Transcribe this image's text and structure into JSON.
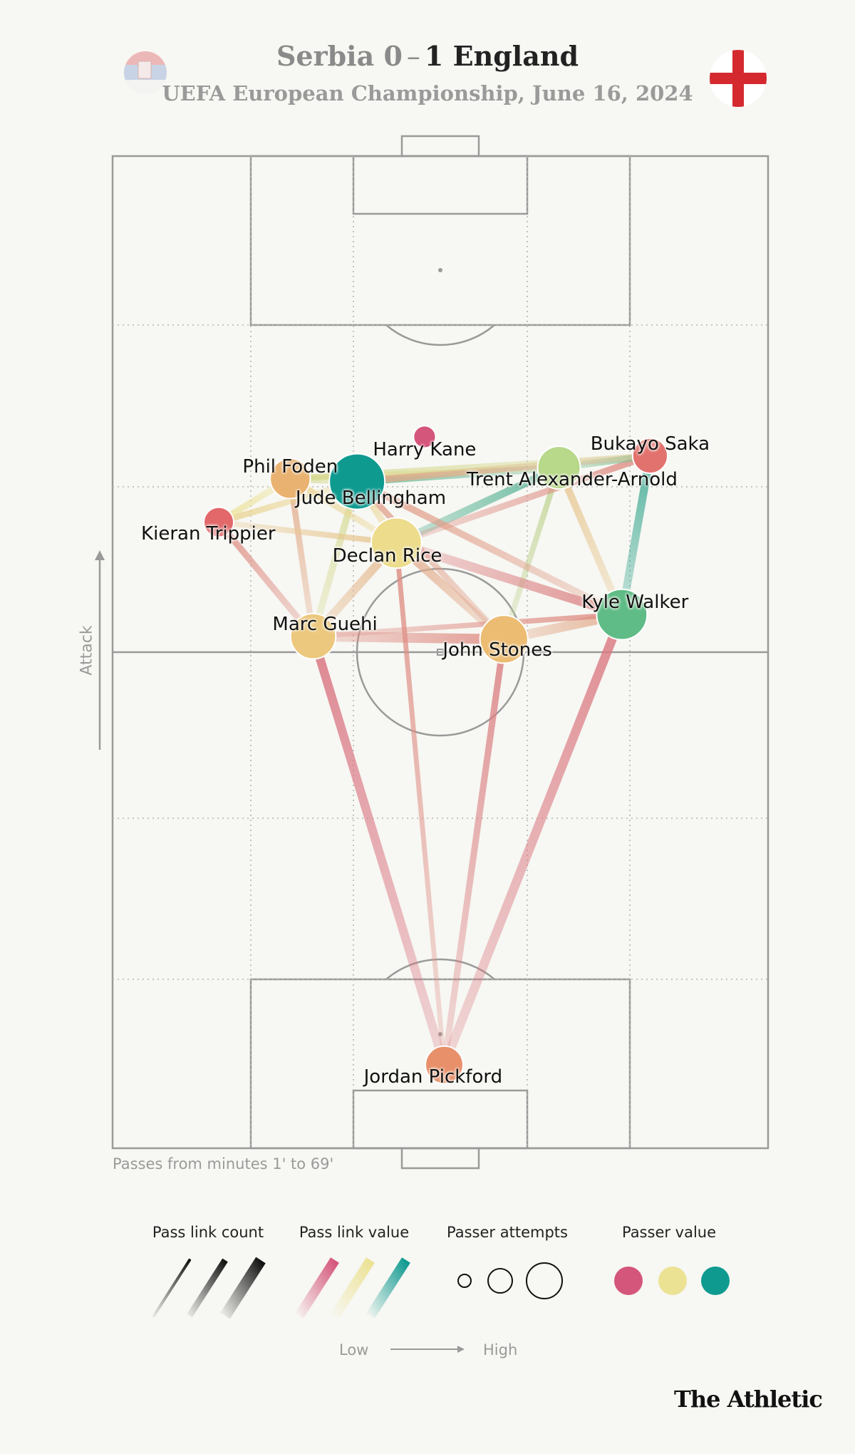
{
  "header": {
    "home_team": "Serbia",
    "home_score": "0",
    "score_separator": "–",
    "away_score": "1",
    "away_team": "England",
    "subtitle": "UEFA European Championship, June 16, 2024"
  },
  "footnote": "Passes from minutes 1' to 69'",
  "axis_label": "Attack",
  "brand": "The Athletic",
  "legend": {
    "pass_link_count": "Pass link count",
    "pass_link_value": "Pass link value",
    "passer_attempts": "Passer attempts",
    "passer_value": "Passer value",
    "low": "Low",
    "high": "High"
  },
  "colors": {
    "low_value": "#d4567a",
    "mid_value": "#ece294",
    "high_value": "#0f9a90",
    "pitch_line": "#9a9a9a",
    "background": "#f7f7f3",
    "serbia_flag": [
      "#e8a3a3",
      "#b8c8e0",
      "#f2f2f2"
    ],
    "england_flag": [
      "#ffffff",
      "#d42a2f"
    ]
  },
  "chart_data": {
    "type": "scatter",
    "title": "Serbia 0 – 1 England",
    "subtitle": "UEFA European Championship, June 16, 2024",
    "description_units": "x: pitch width 0-100 (left to right), y: pitch length 0-100 (own goal to opponent goal)",
    "players": [
      {
        "name": "Harry Kane",
        "x": 47.6,
        "y": 71.7,
        "size": 0.1,
        "color": "#d4567a",
        "label_dx": 0,
        "label_dy": -1.3
      },
      {
        "name": "Bukayo Saka",
        "x": 82.0,
        "y": 69.8,
        "size": 0.35,
        "color": "#e2726e",
        "label_dx": 0,
        "label_dy": 1.2
      },
      {
        "name": "Phil Foden",
        "x": 27.1,
        "y": 67.5,
        "size": 0.45,
        "color": "#eab270",
        "label_dx": 0,
        "label_dy": 1.2
      },
      {
        "name": "Jude Bellingham",
        "x": 37.3,
        "y": 67.2,
        "size": 0.75,
        "color": "#0f9a90",
        "label_dx": 2.1,
        "label_dy": -1.7
      },
      {
        "name": "Trent Alexander-Arnold",
        "x": 68.1,
        "y": 68.6,
        "size": 0.5,
        "color": "#b8d88a",
        "label_dx": 2.0,
        "label_dy": -1.2
      },
      {
        "name": "Kieran Trippier",
        "x": 16.2,
        "y": 63.1,
        "size": 0.25,
        "color": "#e2686a",
        "label_dx": -1.6,
        "label_dy": -1.2
      },
      {
        "name": "Declan Rice",
        "x": 43.3,
        "y": 61.0,
        "size": 0.65,
        "color": "#ecdc8c",
        "label_dx": -1.4,
        "label_dy": -1.3
      },
      {
        "name": "Kyle Walker",
        "x": 77.7,
        "y": 53.8,
        "size": 0.65,
        "color": "#5fbc86",
        "label_dx": 2.0,
        "label_dy": 1.2
      },
      {
        "name": "Marc Guehi",
        "x": 30.6,
        "y": 51.6,
        "size": 0.55,
        "color": "#ecc87e",
        "label_dx": 1.8,
        "label_dy": 1.2
      },
      {
        "name": "John Stones",
        "x": 59.7,
        "y": 51.3,
        "size": 0.6,
        "color": "#ecbc72",
        "label_dx": -1.0,
        "label_dy": -1.1
      },
      {
        "name": "Jordan Pickford",
        "x": 50.6,
        "y": 8.4,
        "size": 0.4,
        "color": "#e8906a",
        "label_dx": -1.7,
        "label_dy": -1.2
      }
    ],
    "links": [
      {
        "from": "Jordan Pickford",
        "to": "Marc Guehi",
        "count": 0.85,
        "value": 0.1
      },
      {
        "from": "Jordan Pickford",
        "to": "John Stones",
        "count": 0.55,
        "value": 0.15
      },
      {
        "from": "Jordan Pickford",
        "to": "Kyle Walker",
        "count": 0.9,
        "value": 0.12
      },
      {
        "from": "Jordan Pickford",
        "to": "Declan Rice",
        "count": 0.35,
        "value": 0.2
      },
      {
        "from": "Marc Guehi",
        "to": "John Stones",
        "count": 1.0,
        "value": 0.2
      },
      {
        "from": "Marc Guehi",
        "to": "Declan Rice",
        "count": 0.8,
        "value": 0.35
      },
      {
        "from": "Marc Guehi",
        "to": "Jude Bellingham",
        "count": 0.6,
        "value": 0.55
      },
      {
        "from": "Marc Guehi",
        "to": "Phil Foden",
        "count": 0.5,
        "value": 0.3
      },
      {
        "from": "Marc Guehi",
        "to": "Kieran Trippier",
        "count": 0.55,
        "value": 0.2
      },
      {
        "from": "John Stones",
        "to": "Kyle Walker",
        "count": 0.95,
        "value": 0.3
      },
      {
        "from": "John Stones",
        "to": "Declan Rice",
        "count": 0.85,
        "value": 0.3
      },
      {
        "from": "John Stones",
        "to": "Jude Bellingham",
        "count": 0.5,
        "value": 0.25
      },
      {
        "from": "John Stones",
        "to": "Trent Alexander-Arnold",
        "count": 0.45,
        "value": 0.6
      },
      {
        "from": "Declan Rice",
        "to": "Kyle Walker",
        "count": 0.9,
        "value": 0.15
      },
      {
        "from": "Declan Rice",
        "to": "Trent Alexander-Arnold",
        "count": 0.7,
        "value": 0.85
      },
      {
        "from": "Declan Rice",
        "to": "Jude Bellingham",
        "count": 0.6,
        "value": 0.45
      },
      {
        "from": "Declan Rice",
        "to": "Phil Foden",
        "count": 0.5,
        "value": 0.45
      },
      {
        "from": "Declan Rice",
        "to": "Bukayo Saka",
        "count": 0.55,
        "value": 0.2
      },
      {
        "from": "Kyle Walker",
        "to": "Bukayo Saka",
        "count": 0.75,
        "value": 0.9
      },
      {
        "from": "Kyle Walker",
        "to": "Trent Alexander-Arnold",
        "count": 0.65,
        "value": 0.4
      },
      {
        "from": "Kyle Walker",
        "to": "Jude Bellingham",
        "count": 0.6,
        "value": 0.25
      },
      {
        "from": "Trent Alexander-Arnold",
        "to": "Bukayo Saka",
        "count": 0.6,
        "value": 0.75
      },
      {
        "from": "Trent Alexander-Arnold",
        "to": "Jude Bellingham",
        "count": 0.7,
        "value": 0.8
      },
      {
        "from": "Trent Alexander-Arnold",
        "to": "Phil Foden",
        "count": 0.45,
        "value": 0.45
      },
      {
        "from": "Bukayo Saka",
        "to": "Jude Bellingham",
        "count": 0.6,
        "value": 0.3
      },
      {
        "from": "Bukayo Saka",
        "to": "Phil Foden",
        "count": 0.45,
        "value": 0.55
      },
      {
        "from": "Jude Bellingham",
        "to": "Phil Foden",
        "count": 0.6,
        "value": 0.55
      },
      {
        "from": "Jude Bellingham",
        "to": "Kieran Trippier",
        "count": 0.5,
        "value": 0.45
      },
      {
        "from": "Phil Foden",
        "to": "Kieran Trippier",
        "count": 0.55,
        "value": 0.5
      },
      {
        "from": "Kieran Trippier",
        "to": "Declan Rice",
        "count": 0.45,
        "value": 0.4
      },
      {
        "from": "Marc Guehi",
        "to": "Kyle Walker",
        "count": 0.4,
        "value": 0.2
      }
    ]
  }
}
